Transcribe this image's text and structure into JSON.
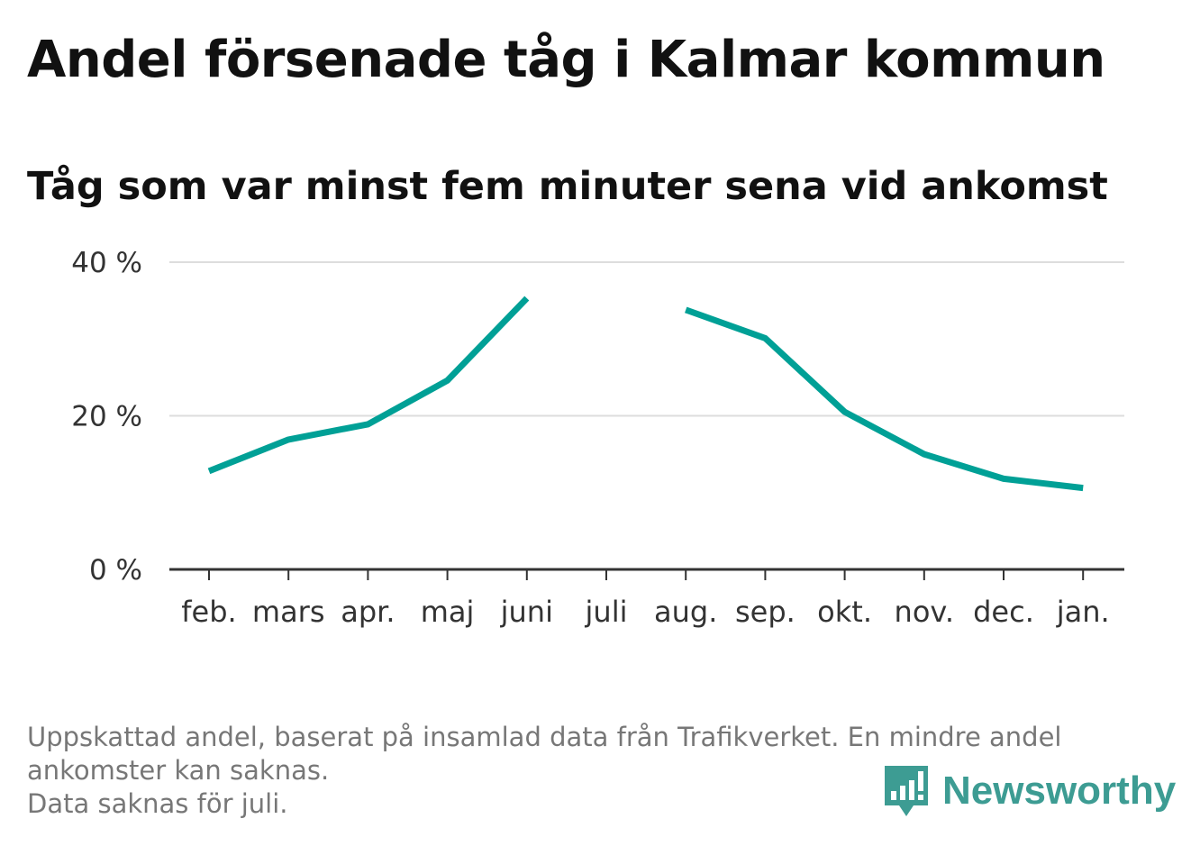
{
  "header": {
    "title": "Andel försenade tåg i Kalmar kommun",
    "subtitle": "Tåg som var minst fem minuter sena vid ankomst"
  },
  "chart_data": {
    "type": "line",
    "categories": [
      "feb.",
      "mars",
      "apr.",
      "maj",
      "juni",
      "juli",
      "aug.",
      "sep.",
      "okt.",
      "nov.",
      "dec.",
      "jan."
    ],
    "series": [
      {
        "values": [
          12.8,
          16.9,
          18.9,
          24.6,
          35.3,
          null,
          33.8,
          30.1,
          20.5,
          15.0,
          11.8,
          10.6
        ]
      }
    ],
    "y_ticks": [
      0,
      20,
      40
    ],
    "y_tick_labels": [
      "0 %",
      "20 %",
      "40 %"
    ],
    "ylim": [
      0,
      40
    ],
    "grid": true,
    "line_color": "#00a096"
  },
  "footer": {
    "note_lines": [
      "Uppskattad andel, baserat på insamlad data från Trafikverket. En mindre andel",
      "ankomster kan saknas.",
      "Data saknas för juli."
    ],
    "brand": "Newsworthy",
    "brand_color": "#3d9c93"
  }
}
